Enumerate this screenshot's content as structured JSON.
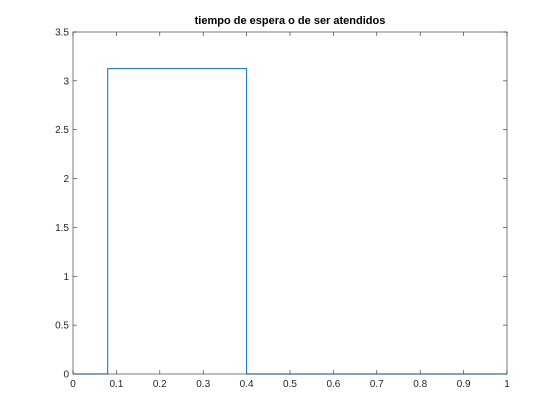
{
  "chart_data": {
    "type": "line",
    "title": "tiempo de espera o de ser atendidos",
    "xlabel": "",
    "ylabel": "",
    "xlim": [
      0,
      1
    ],
    "ylim": [
      0,
      3.5
    ],
    "xticks": [
      0,
      0.1,
      0.2,
      0.3,
      0.4,
      0.5,
      0.6,
      0.7,
      0.8,
      0.9,
      1
    ],
    "xtick_labels": [
      "0",
      "0.1",
      "0.2",
      "0.3",
      "0.4",
      "0.5",
      "0.6",
      "0.7",
      "0.8",
      "0.9",
      "1"
    ],
    "yticks": [
      0,
      0.5,
      1,
      1.5,
      2,
      2.5,
      3,
      3.5
    ],
    "ytick_labels": [
      "0",
      "0.5",
      "1",
      "1.5",
      "2",
      "2.5",
      "3",
      "3.5"
    ],
    "grid": false,
    "series": [
      {
        "color": "#0072bd",
        "x": [
          0,
          0.08,
          0.08,
          0.4,
          0.4,
          1
        ],
        "y": [
          0,
          0,
          3.125,
          3.125,
          0,
          0
        ]
      }
    ]
  }
}
